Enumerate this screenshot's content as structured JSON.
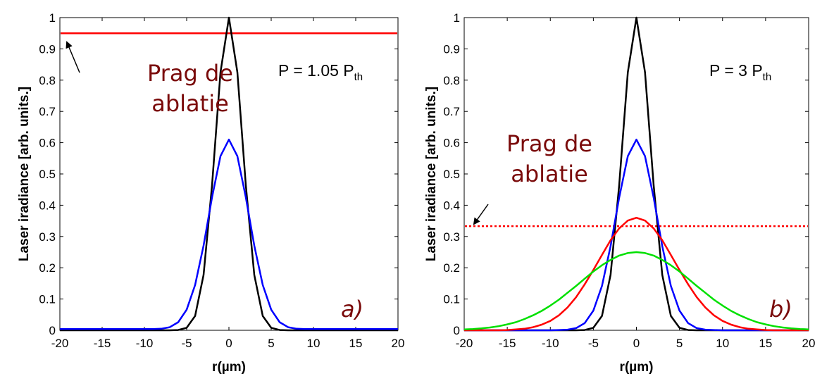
{
  "chart_data": [
    {
      "type": "line",
      "panel_label": "a)",
      "annotation": "P = 1.05 P",
      "annotation_sub": "th",
      "threshold_label": [
        "Prag de",
        "ablatie"
      ],
      "xlabel": "r(µm)",
      "ylabel": "Laser iradiance [arb. units.]",
      "xlim": [
        -20,
        20
      ],
      "ylim": [
        0,
        1
      ],
      "xticks": [
        "-20",
        "-15",
        "-10",
        "-5",
        "0",
        "5",
        "10",
        "15",
        "20"
      ],
      "yticks": [
        "0",
        "0.1",
        "0.2",
        "0.3",
        "0.4",
        "0.5",
        "0.6",
        "0.7",
        "0.8",
        "0.9",
        "1"
      ],
      "threshold": {
        "value": 0.95,
        "style": "solid",
        "color": "#ff0000"
      },
      "x": [
        -20,
        -19,
        -18,
        -17,
        -16,
        -15,
        -14,
        -13,
        -12,
        -11,
        -10,
        -9,
        -8,
        -7,
        -6,
        -5,
        -4,
        -3,
        -2,
        -1,
        0,
        1,
        2,
        3,
        4,
        5,
        6,
        7,
        8,
        9,
        10,
        11,
        12,
        13,
        14,
        15,
        16,
        17,
        18,
        19,
        20
      ],
      "series": [
        {
          "name": "black",
          "color": "#000000",
          "values": [
            0,
            0,
            0,
            0,
            0,
            0,
            0,
            0,
            0,
            0,
            0,
            0,
            0,
            0,
            0.001,
            0.008,
            0.046,
            0.177,
            0.463,
            0.825,
            1,
            0.825,
            0.463,
            0.177,
            0.046,
            0.008,
            0.001,
            0,
            0,
            0,
            0,
            0,
            0,
            0,
            0,
            0,
            0,
            0,
            0,
            0,
            0
          ]
        },
        {
          "name": "blue",
          "color": "#0000ff",
          "values": [
            0.004,
            0.004,
            0.004,
            0.004,
            0.004,
            0.004,
            0.004,
            0.004,
            0.004,
            0.004,
            0.004,
            0.004,
            0.005,
            0.01,
            0.026,
            0.066,
            0.145,
            0.271,
            0.425,
            0.557,
            0.61,
            0.557,
            0.425,
            0.271,
            0.145,
            0.066,
            0.026,
            0.01,
            0.005,
            0.004,
            0.004,
            0.004,
            0.004,
            0.004,
            0.004,
            0.004,
            0.004,
            0.004,
            0.004,
            0.004,
            0.004
          ]
        }
      ]
    },
    {
      "type": "line",
      "panel_label": "b)",
      "annotation": "P = 3 P",
      "annotation_sub": "th",
      "threshold_label": [
        "Prag de",
        "ablatie"
      ],
      "xlabel": "r(µm)",
      "ylabel": "Laser iradiance [arb. units.]",
      "xlim": [
        -20,
        20
      ],
      "ylim": [
        0,
        1
      ],
      "xticks": [
        "-20",
        "-15",
        "-10",
        "-5",
        "0",
        "5",
        "10",
        "15",
        "20"
      ],
      "yticks": [
        "0",
        "0.1",
        "0.2",
        "0.3",
        "0.4",
        "0.5",
        "0.6",
        "0.7",
        "0.8",
        "0.9",
        "1"
      ],
      "threshold": {
        "value": 0.333,
        "style": "dotted",
        "color": "#ff0000"
      },
      "x": [
        -20,
        -19,
        -18,
        -17,
        -16,
        -15,
        -14,
        -13,
        -12,
        -11,
        -10,
        -9,
        -8,
        -7,
        -6,
        -5,
        -4,
        -3,
        -2,
        -1,
        0,
        1,
        2,
        3,
        4,
        5,
        6,
        7,
        8,
        9,
        10,
        11,
        12,
        13,
        14,
        15,
        16,
        17,
        18,
        19,
        20
      ],
      "series": [
        {
          "name": "black",
          "color": "#000000",
          "values": [
            0,
            0,
            0,
            0,
            0,
            0,
            0,
            0,
            0,
            0,
            0,
            0,
            0,
            0,
            0.001,
            0.008,
            0.046,
            0.177,
            0.463,
            0.825,
            1,
            0.825,
            0.463,
            0.177,
            0.046,
            0.008,
            0.001,
            0,
            0,
            0,
            0,
            0,
            0,
            0,
            0,
            0,
            0,
            0,
            0,
            0,
            0
          ]
        },
        {
          "name": "blue",
          "color": "#0000ff",
          "values": [
            0,
            0,
            0,
            0,
            0,
            0,
            0,
            0,
            0,
            0,
            0,
            0.001,
            0.002,
            0.007,
            0.023,
            0.063,
            0.142,
            0.269,
            0.424,
            0.557,
            0.61,
            0.557,
            0.424,
            0.269,
            0.142,
            0.063,
            0.023,
            0.007,
            0.002,
            0.001,
            0,
            0,
            0,
            0,
            0,
            0,
            0,
            0,
            0,
            0,
            0
          ]
        },
        {
          "name": "red",
          "color": "#ff0000",
          "values": [
            0,
            0,
            0,
            0,
            0,
            0.001,
            0.003,
            0.005,
            0.01,
            0.018,
            0.03,
            0.048,
            0.073,
            0.106,
            0.147,
            0.193,
            0.241,
            0.288,
            0.326,
            0.351,
            0.36,
            0.351,
            0.326,
            0.288,
            0.241,
            0.193,
            0.147,
            0.106,
            0.073,
            0.048,
            0.03,
            0.018,
            0.01,
            0.005,
            0.003,
            0.001,
            0,
            0,
            0,
            0,
            0
          ]
        },
        {
          "name": "green",
          "color": "#00e000",
          "values": [
            0.003,
            0.004,
            0.006,
            0.009,
            0.013,
            0.019,
            0.026,
            0.036,
            0.048,
            0.062,
            0.079,
            0.098,
            0.12,
            0.142,
            0.165,
            0.188,
            0.208,
            0.225,
            0.239,
            0.247,
            0.25,
            0.247,
            0.239,
            0.225,
            0.208,
            0.188,
            0.165,
            0.142,
            0.12,
            0.098,
            0.079,
            0.062,
            0.048,
            0.036,
            0.026,
            0.019,
            0.013,
            0.009,
            0.006,
            0.004,
            0.003
          ]
        }
      ]
    }
  ]
}
